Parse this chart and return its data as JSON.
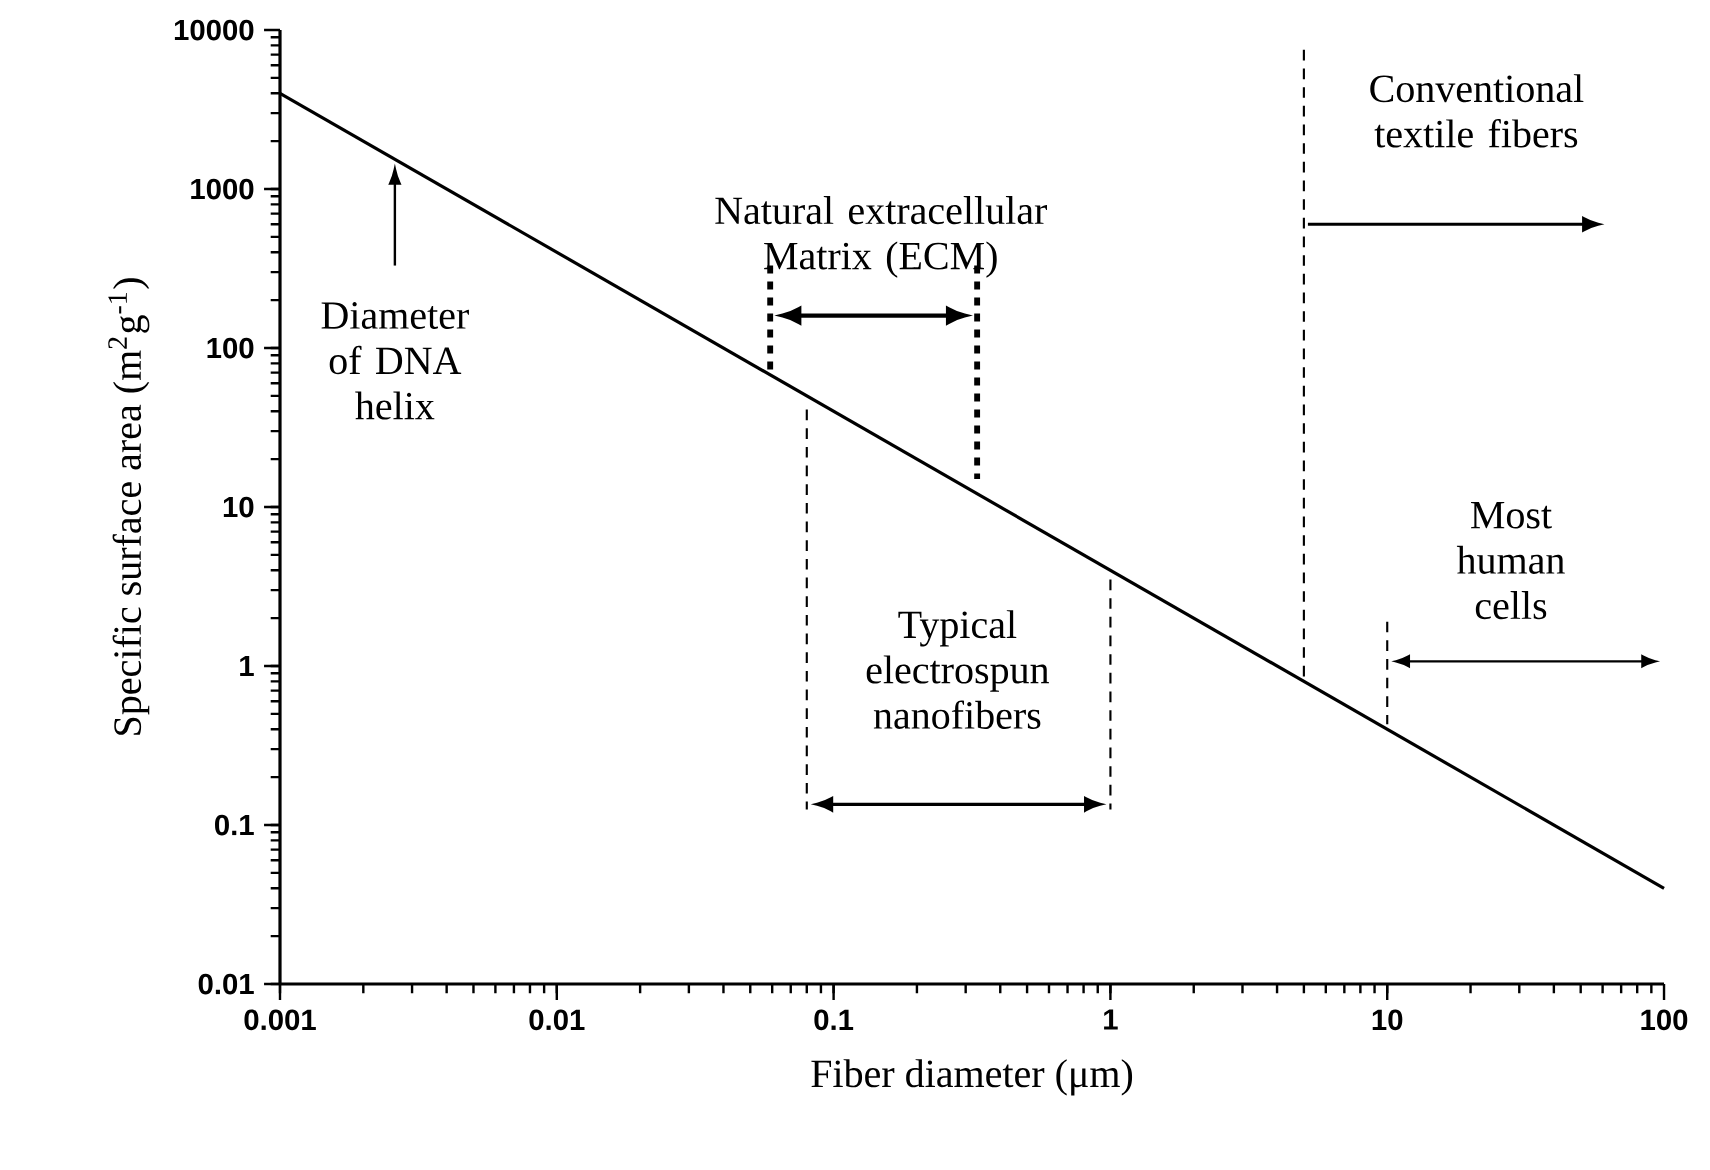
{
  "chart_data": {
    "type": "line",
    "xlabel": "Fiber diameter (μm)",
    "ylabel": "Specific surface area (m$^{2}$g$^{-1}$)",
    "log": "xy",
    "xlim": [
      0.001,
      100
    ],
    "ylim": [
      0.01,
      10000
    ],
    "xticks": [
      0.001,
      0.01,
      0.1,
      1,
      10,
      100
    ],
    "yticks": [
      0.01,
      0.1,
      1,
      10,
      100,
      1000,
      10000
    ],
    "series": [
      {
        "color": "#000000",
        "x": [
          0.001,
          100
        ],
        "values": [
          4000,
          0.04
        ]
      }
    ],
    "marker": "none",
    "line_style": "solid",
    "grid": false,
    "ref_lines": [
      {
        "axis": "x",
        "value": 5,
        "line_style": "dashed"
      }
    ],
    "annotations": [
      "Diameter of DNA helix",
      {
        "text": "Natural extracellular Matrix (ECM)",
        "x": 0.059,
        "y": 68
      },
      "Typical electrospun nanofibers",
      "Conventional textile fibers",
      "Most human cells"
    ]
  }
}
